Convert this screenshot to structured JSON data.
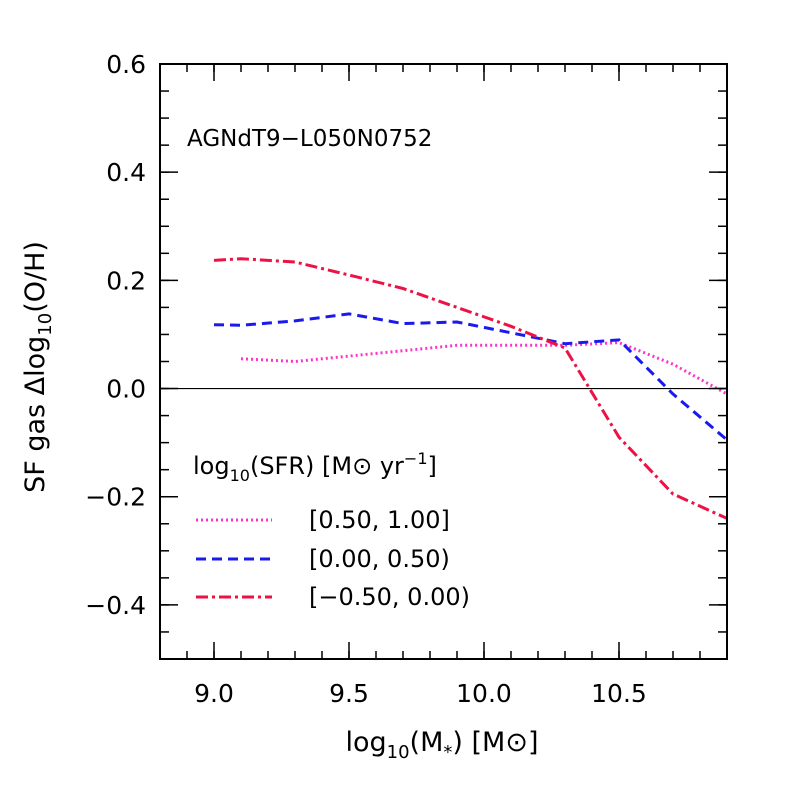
{
  "chart_data": {
    "type": "line",
    "annotation": "AGNdT9−L050N0752",
    "xlabel": {
      "pre": "log",
      "sub": "10",
      "mid": "(M",
      "sub2": "*",
      "post": ")  [M",
      "sym": "⊙",
      "end": "]"
    },
    "ylabel": {
      "pre": "SF  gas  Δlog",
      "sub": "10",
      "post": "(O/H)"
    },
    "xlim": [
      8.8,
      10.9
    ],
    "ylim": [
      -0.5,
      0.6
    ],
    "x_ticks": [
      9.0,
      9.5,
      10.0,
      10.5
    ],
    "x_tick_labels": [
      "9.0",
      "9.5",
      "10.0",
      "10.5"
    ],
    "y_ticks": [
      -0.4,
      -0.2,
      0.0,
      0.2,
      0.4,
      0.6
    ],
    "y_tick_labels": [
      "−0.4",
      "−0.2",
      "0.0",
      "0.2",
      "0.4",
      "0.6"
    ],
    "x_minor_step": 0.1,
    "y_minor_step": 0.05,
    "zero_line": 0.0,
    "legend": {
      "title": {
        "pre": "log",
        "sub": "10",
        "mid": "(SFR)  [M",
        "sym": "⊙",
        "post": " yr",
        "sup": "−1",
        "end": "]"
      },
      "position": "lower-left"
    },
    "series": [
      {
        "name": "[0.50, 1.00]",
        "color": "#ff33cc",
        "style": "dotted",
        "x": [
          9.1,
          9.3,
          9.5,
          9.7,
          9.9,
          10.1,
          10.3,
          10.5,
          10.7,
          10.9
        ],
        "y": [
          0.055,
          0.05,
          0.06,
          0.07,
          0.08,
          0.08,
          0.08,
          0.085,
          0.045,
          -0.01
        ]
      },
      {
        "name": "[0.00, 0.50)",
        "color": "#1a1aee",
        "style": "dashed",
        "x": [
          9.0,
          9.1,
          9.3,
          9.5,
          9.7,
          9.9,
          10.1,
          10.3,
          10.5,
          10.7,
          10.9
        ],
        "y": [
          0.118,
          0.117,
          0.125,
          0.138,
          0.12,
          0.123,
          0.103,
          0.083,
          0.09,
          -0.01,
          -0.095
        ]
      },
      {
        "name": "[−0.50, 0.00)",
        "color": "#ee1144",
        "style": "dashdot",
        "x": [
          9.0,
          9.1,
          9.3,
          9.5,
          9.7,
          9.9,
          10.1,
          10.3,
          10.5,
          10.7,
          10.9
        ],
        "y": [
          0.237,
          0.24,
          0.234,
          0.21,
          0.185,
          0.15,
          0.115,
          0.075,
          -0.09,
          -0.195,
          -0.24
        ]
      }
    ]
  }
}
